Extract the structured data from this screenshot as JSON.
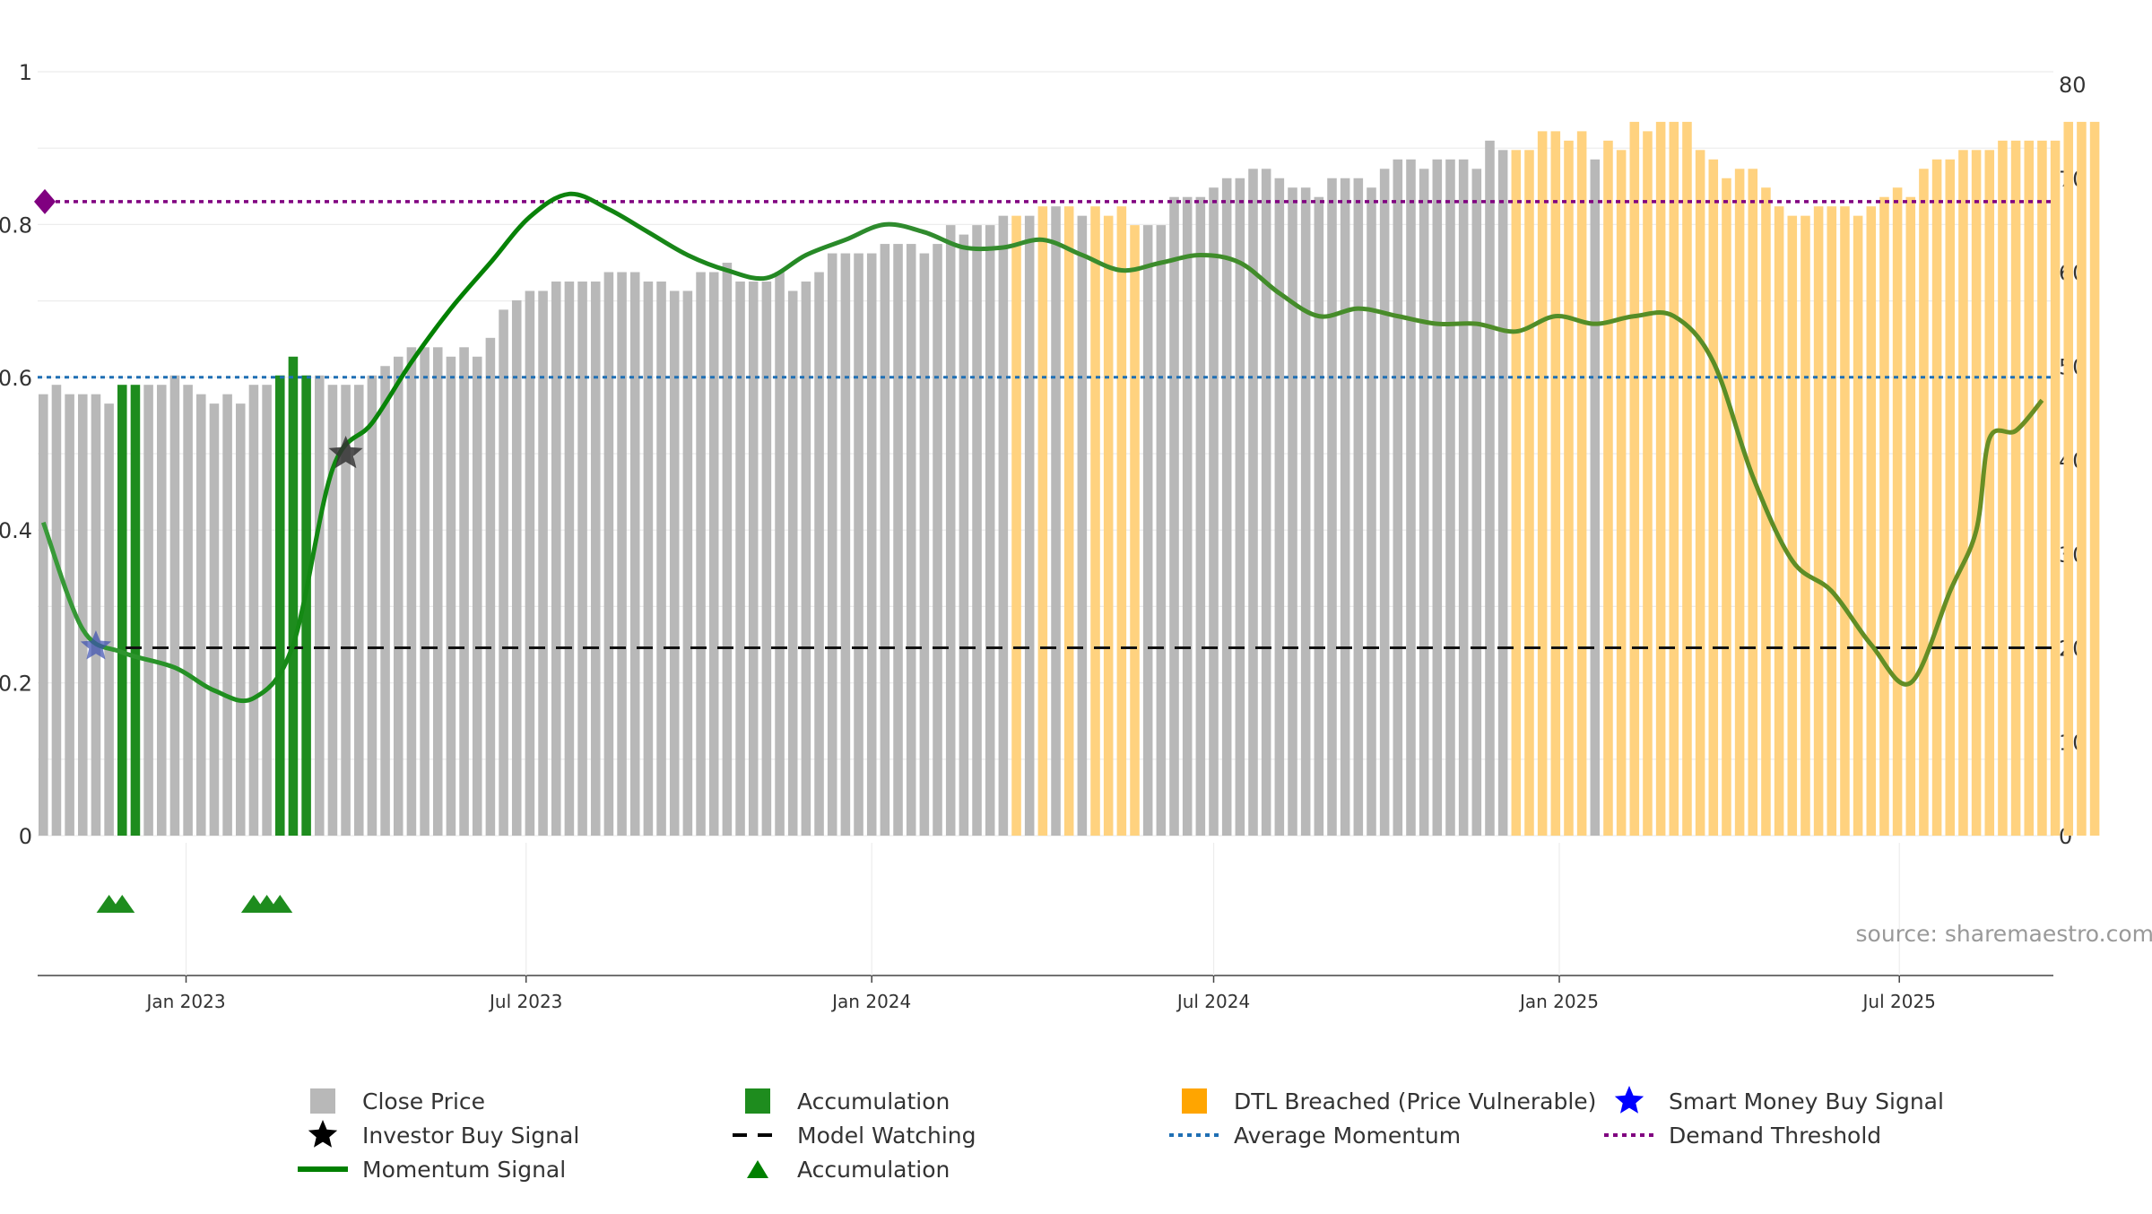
{
  "chart_data": {
    "type": "bar",
    "title": "",
    "source": "source: sharemaestro.com",
    "left_axis": {
      "ticks": [
        "0",
        "0.2",
        "0.4",
        "0.6",
        "0.8",
        "1"
      ],
      "range": [
        0,
        1
      ]
    },
    "right_axis": {
      "ticks": [
        "0",
        "10",
        "20",
        "30",
        "40",
        "50",
        "60",
        "70",
        "80"
      ],
      "range": [
        0,
        80
      ]
    },
    "x_axis": {
      "ticks": [
        "Jan 2023",
        "Jul 2023",
        "Jan 2024",
        "Jul 2024",
        "Jan 2025",
        "Jul 2025"
      ]
    },
    "series": [
      {
        "name": "Close Price",
        "axis": "right",
        "kind": "bar",
        "start": "2022-10-17",
        "interval_days": 7,
        "values": [
          47,
          48,
          47,
          47,
          47,
          46,
          48,
          48,
          48,
          48,
          49,
          48,
          47,
          46,
          47,
          46,
          48,
          48,
          49,
          51,
          49,
          49,
          48,
          48,
          48,
          49,
          50,
          51,
          52,
          52,
          52,
          51,
          52,
          51,
          53,
          56,
          57,
          58,
          58,
          59,
          59,
          59,
          59,
          60,
          60,
          60,
          59,
          59,
          58,
          58,
          60,
          60,
          61,
          59,
          59,
          59,
          60,
          58,
          59,
          60,
          62,
          62,
          62,
          62,
          63,
          63,
          63,
          62,
          63,
          65,
          64,
          65,
          65,
          66,
          66,
          66,
          67,
          67,
          67,
          66,
          67,
          66,
          67,
          65,
          65,
          65,
          68,
          68,
          68,
          69,
          70,
          70,
          71,
          71,
          70,
          69,
          69,
          68,
          70,
          70,
          70,
          69,
          71,
          72,
          72,
          71,
          72,
          72,
          72,
          71,
          74,
          73,
          73,
          73,
          75,
          75,
          74,
          75,
          72,
          74,
          73,
          76,
          75,
          76,
          76,
          76,
          73,
          72,
          70,
          71,
          71,
          69,
          67,
          66,
          66,
          67,
          67,
          67,
          66,
          67,
          68,
          69,
          68,
          71,
          72,
          72,
          73,
          73,
          73,
          74,
          74,
          74,
          74,
          74,
          76,
          76,
          76
        ],
        "status": [
          "close",
          "close",
          "close",
          "close",
          "close",
          "close",
          "accumulation",
          "accumulation",
          "close",
          "close",
          "close",
          "close",
          "close",
          "close",
          "close",
          "close",
          "close",
          "close",
          "accumulation",
          "accumulation",
          "accumulation",
          "close",
          "close",
          "close",
          "close",
          "close",
          "close",
          "close",
          "close",
          "close",
          "close",
          "close",
          "close",
          "close",
          "close",
          "close",
          "close",
          "close",
          "close",
          "close",
          "close",
          "close",
          "close",
          "close",
          "close",
          "close",
          "close",
          "close",
          "close",
          "close",
          "close",
          "close",
          "close",
          "close",
          "close",
          "close",
          "close",
          "close",
          "close",
          "close",
          "close",
          "close",
          "close",
          "close",
          "close",
          "close",
          "close",
          "close",
          "close",
          "close",
          "close",
          "close",
          "close",
          "close",
          "close",
          "close",
          "close",
          "close",
          "close",
          "close",
          "close",
          "close",
          "close",
          "close",
          "close",
          "close",
          "close",
          "close",
          "close",
          "close",
          "close",
          "close",
          "close",
          "close",
          "close",
          "close",
          "close",
          "close",
          "close",
          "close",
          "close",
          "close",
          "close",
          "close",
          "close",
          "close",
          "close",
          "close",
          "close",
          "close",
          "close",
          "close",
          "close",
          "close",
          "close",
          "close",
          "close",
          "close",
          "close",
          "close",
          "close",
          "close",
          "close",
          "close",
          "close",
          "close",
          "close",
          "close",
          "close",
          "close",
          "close",
          "close",
          "close",
          "close",
          "close",
          "close",
          "close",
          "close",
          "close",
          "close",
          "close",
          "close",
          "close",
          "close",
          "close",
          "close",
          "close",
          "close",
          "close",
          "close",
          "close",
          "close",
          "close",
          "close",
          "close",
          "close",
          "close",
          "close",
          "close",
          "close",
          "close",
          "close"
        ]
      },
      {
        "name": "Momentum Signal",
        "axis": "left",
        "kind": "line",
        "points": [
          [
            "2022-10-17",
            0.41
          ],
          [
            "2022-11-07",
            0.27
          ],
          [
            "2022-11-28",
            0.24
          ],
          [
            "2022-12-26",
            0.22
          ],
          [
            "2023-01-16",
            0.19
          ],
          [
            "2023-02-06",
            0.18
          ],
          [
            "2023-02-27",
            0.25
          ],
          [
            "2023-03-20",
            0.48
          ],
          [
            "2023-04-10",
            0.54
          ],
          [
            "2023-05-01",
            0.62
          ],
          [
            "2023-05-22",
            0.69
          ],
          [
            "2023-06-12",
            0.75
          ],
          [
            "2023-07-03",
            0.81
          ],
          [
            "2023-07-24",
            0.84
          ],
          [
            "2023-08-14",
            0.82
          ],
          [
            "2023-09-04",
            0.79
          ],
          [
            "2023-09-25",
            0.76
          ],
          [
            "2023-10-16",
            0.74
          ],
          [
            "2023-11-06",
            0.73
          ],
          [
            "2023-11-27",
            0.76
          ],
          [
            "2023-12-18",
            0.78
          ],
          [
            "2024-01-08",
            0.8
          ],
          [
            "2024-01-29",
            0.79
          ],
          [
            "2024-02-19",
            0.77
          ],
          [
            "2024-03-11",
            0.77
          ],
          [
            "2024-04-01",
            0.78
          ],
          [
            "2024-04-22",
            0.76
          ],
          [
            "2024-05-13",
            0.74
          ],
          [
            "2024-06-03",
            0.75
          ],
          [
            "2024-06-24",
            0.76
          ],
          [
            "2024-07-15",
            0.75
          ],
          [
            "2024-08-05",
            0.71
          ],
          [
            "2024-08-26",
            0.68
          ],
          [
            "2024-09-16",
            0.69
          ],
          [
            "2024-10-07",
            0.68
          ],
          [
            "2024-10-28",
            0.67
          ],
          [
            "2024-11-18",
            0.67
          ],
          [
            "2024-12-09",
            0.66
          ],
          [
            "2024-12-30",
            0.68
          ],
          [
            "2025-01-20",
            0.67
          ],
          [
            "2025-02-10",
            0.68
          ],
          [
            "2025-03-03",
            0.68
          ],
          [
            "2025-03-24",
            0.62
          ],
          [
            "2025-04-14",
            0.47
          ],
          [
            "2025-05-05",
            0.36
          ],
          [
            "2025-05-26",
            0.32
          ],
          [
            "2025-06-16",
            0.25
          ],
          [
            "2025-07-07",
            0.2
          ],
          [
            "2025-07-28",
            0.32
          ],
          [
            "2025-08-11",
            0.4
          ],
          [
            "2025-08-18",
            0.52
          ],
          [
            "2025-09-01",
            0.53
          ],
          [
            "2025-09-15",
            0.57
          ]
        ]
      },
      {
        "name": "Model Watching",
        "axis": "right",
        "kind": "hline",
        "value": 20
      },
      {
        "name": "Average Momentum",
        "axis": "left",
        "kind": "hline",
        "value": 0.6
      },
      {
        "name": "Demand Threshold",
        "axis": "left",
        "kind": "hline",
        "value": 0.83
      },
      {
        "name": "Investor Buy Signal",
        "kind": "marker",
        "date": "2023-03-27",
        "axis": "left",
        "value": 0.5
      },
      {
        "name": "Smart Money Buy Signal",
        "kind": "marker",
        "date": "2022-11-14",
        "axis": "left",
        "value": 0.25
      },
      {
        "name": "Accumulation",
        "kind": "triangles",
        "dates": [
          "2022-11-21",
          "2022-11-28",
          "2023-02-06",
          "2023-02-13",
          "2023-02-20"
        ]
      }
    ],
    "legend": [
      {
        "label": "Close Price",
        "symbol": "square",
        "color": "#b8b8b8"
      },
      {
        "label": "Accumulation",
        "symbol": "square",
        "color": "#1e8c1e"
      },
      {
        "label": "DTL Breached (Price Vulnerable)",
        "symbol": "square",
        "color": "#ffa500"
      },
      {
        "label": "Smart Money Buy Signal",
        "symbol": "star",
        "color": "#0000ff"
      },
      {
        "label": "Investor Buy Signal",
        "symbol": "star",
        "color": "#000000"
      },
      {
        "label": "Model Watching",
        "symbol": "dash",
        "color": "#000000"
      },
      {
        "label": "Average Momentum",
        "symbol": "dot",
        "color": "#1f6fb4"
      },
      {
        "label": "Demand Threshold",
        "symbol": "dot",
        "color": "#800080"
      },
      {
        "label": "Momentum Signal",
        "symbol": "line",
        "color": "#008000"
      },
      {
        "label": "Accumulation",
        "symbol": "triangle",
        "color": "#008000"
      }
    ],
    "legend_position": "bottom",
    "colors": {
      "close": "#b8b8b8",
      "accumulation": "#1e8c1e",
      "dtl": "#ffd27f",
      "momentum_start": "#008000",
      "momentum_end": "#6b8e23"
    }
  }
}
